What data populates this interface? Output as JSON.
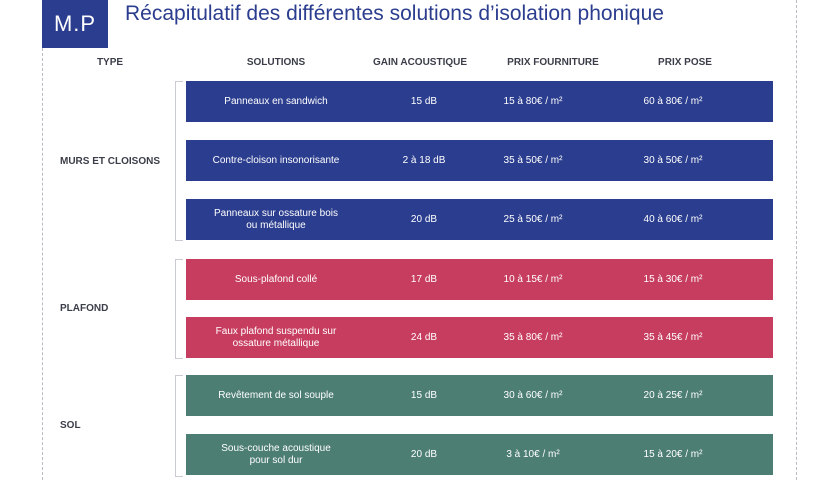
{
  "logo": "M.P",
  "title": "Récapitulatif des différentes solutions d’isolation phonique",
  "headers": {
    "type": "TYPE",
    "solutions": "SOLUTIONS",
    "gain": "GAIN ACOUSTIQUE",
    "fourniture": "PRIX FOURNITURE",
    "pose": "PRIX POSE"
  },
  "colors": {
    "brand": "#2b3d8e",
    "murs": "#2b3d8e",
    "plafond": "#c73d5f",
    "sol": "#4d7e74"
  },
  "groups": [
    {
      "type": "MURS ET CLOISONS",
      "rows": [
        {
          "solution": "Panneaux en sandwich",
          "gain": "15 dB",
          "fourniture": "15 à 80€ / m²",
          "pose": "60 à 80€ / m²"
        },
        {
          "solution": "Contre-cloison insonorisante",
          "gain": "2 à 18 dB",
          "fourniture": "35 à 50€ / m²",
          "pose": "30 à 50€ / m²"
        },
        {
          "solution": "Panneaux sur ossature bois\nou métallique",
          "gain": "20 dB",
          "fourniture": "25 à 50€ / m²",
          "pose": "40 à 60€ / m²"
        }
      ]
    },
    {
      "type": "PLAFOND",
      "rows": [
        {
          "solution": "Sous-plafond collé",
          "gain": "17 dB",
          "fourniture": "10 à 15€ / m²",
          "pose": "15 à 30€ / m²"
        },
        {
          "solution": "Faux plafond suspendu sur\nossature métallique",
          "gain": "24 dB",
          "fourniture": "35 à 80€ / m²",
          "pose": "35 à 45€ / m²"
        }
      ]
    },
    {
      "type": "SOL",
      "rows": [
        {
          "solution": "Revêtement de sol souple",
          "gain": "15 dB",
          "fourniture": "30 à 60€ / m²",
          "pose": "20 à 25€ / m²"
        },
        {
          "solution": "Sous-couche acoustique\npour sol dur",
          "gain": "20 dB",
          "fourniture": "3 à 10€ / m²",
          "pose": "15 à 20€ / m²"
        }
      ]
    }
  ]
}
